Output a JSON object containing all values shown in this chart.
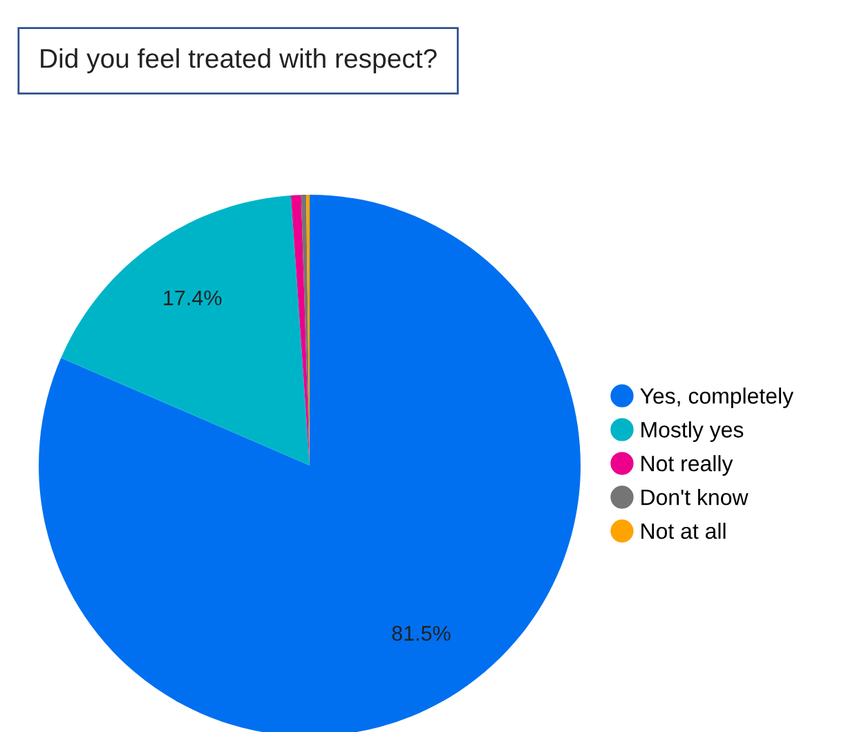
{
  "chart_data": {
    "type": "pie",
    "title": "Did you feel treated with respect?",
    "categories": [
      "Yes, completely",
      "Mostly yes",
      "Not really",
      "Don't know",
      "Not at all"
    ],
    "values": [
      81.5,
      17.4,
      0.6,
      0.3,
      0.2
    ],
    "colors": [
      "#0070f0",
      "#00b4c8",
      "#ec008c",
      "#757575",
      "#ffa300"
    ],
    "value_labels": [
      "81.5%",
      "17.4%",
      null,
      null,
      null
    ],
    "legend": "right"
  }
}
